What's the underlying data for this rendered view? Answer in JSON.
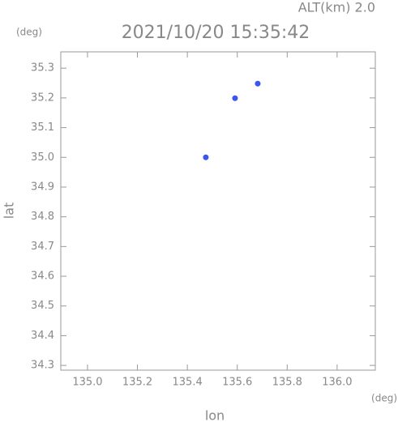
{
  "chart_data": {
    "type": "scatter",
    "title": "2021/10/20 15:35:42",
    "subtitle": "ALT(km) 2.0",
    "y_unit": "(deg)",
    "x_unit": "(deg)",
    "x_label": "lon",
    "y_label": "lat",
    "color": "#3a55f0",
    "x": [
      135.682,
      135.591,
      135.474
    ],
    "values": [
      35.248,
      35.199,
      35.0
    ],
    "xlim": [
      134.893,
      136.153
    ],
    "ylim": [
      34.284,
      35.355
    ],
    "xticks": [
      {
        "value": 135,
        "label": "135.0"
      },
      135.2,
      135.4,
      135.6,
      135.8,
      {
        "value": 136,
        "label": "136.0"
      }
    ],
    "yticks": [
      34.3,
      34.4,
      34.5,
      34.6,
      34.7,
      34.8,
      34.9,
      {
        "value": 35,
        "label": "35.0"
      },
      35.1,
      35.2,
      35.3
    ],
    "grid": false
  }
}
